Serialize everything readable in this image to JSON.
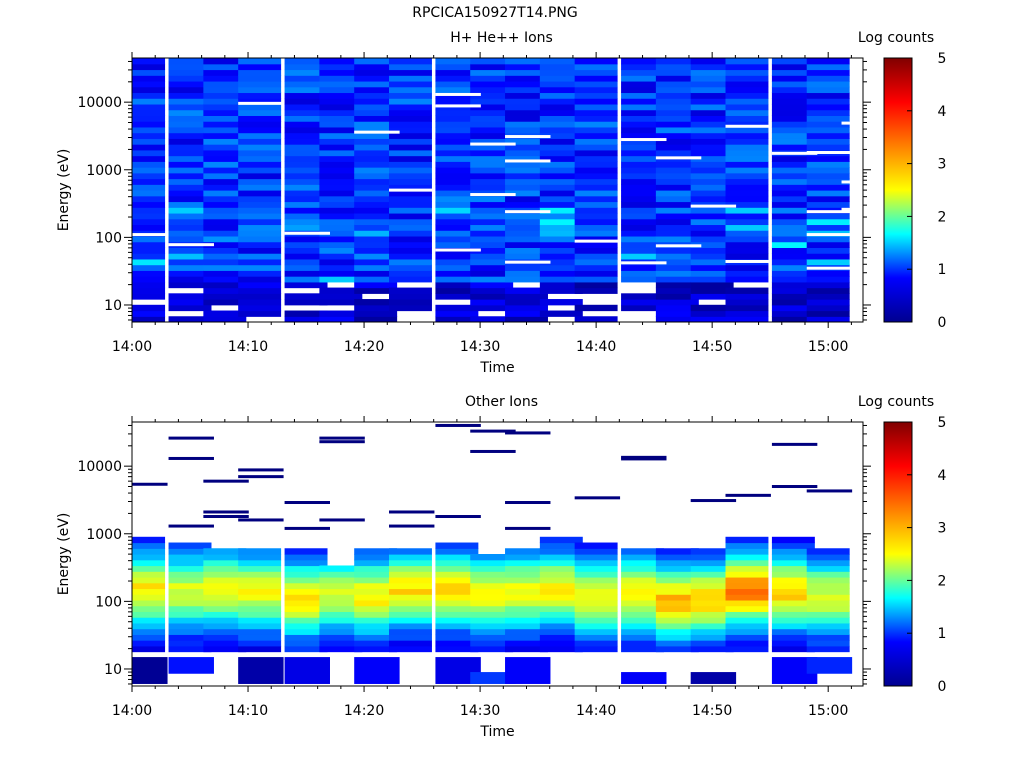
{
  "file_title": "RPCICA150927T14.PNG",
  "colorbar": {
    "ticks": [
      0,
      1,
      2,
      3,
      4,
      5
    ],
    "stops": [
      "#00008f",
      "#0000ff",
      "#00ffff",
      "#ffff00",
      "#ff8000",
      "#ff0000",
      "#800000"
    ]
  },
  "chart_data": [
    {
      "type": "heatmap",
      "title": "H+ He++ Ions",
      "xlabel": "Time",
      "ylabel": "Energy (eV)",
      "colorbar_label": "Log counts",
      "y_scale": "log",
      "ylim": [
        5.6,
        45000
      ],
      "yticks": [
        10,
        100,
        1000,
        10000
      ],
      "ytick_labels": [
        "10",
        "100",
        "1000",
        "10000"
      ],
      "xlim": [
        "14:00",
        "15:03"
      ],
      "xticks": [
        "14:00",
        "14:10",
        "14:20",
        "14:30",
        "14:40",
        "14:50",
        "15:00"
      ],
      "time_bins": [
        "14:01",
        "14:05",
        "14:08",
        "14:11",
        "14:15",
        "14:18",
        "14:21",
        "14:24",
        "14:28",
        "14:31",
        "14:34",
        "14:37",
        "14:40",
        "14:44",
        "14:47",
        "14:50",
        "14:53",
        "14:57",
        "15:00"
      ],
      "energy_range_eV": [
        5.6,
        45000
      ],
      "value_range": [
        0,
        1.8
      ],
      "typical_value": 0.7,
      "low_energy_cutoff_eV": [
        20,
        28,
        20,
        25,
        20,
        20,
        20,
        20,
        20,
        20,
        20,
        20,
        20,
        20,
        20,
        20,
        20,
        20,
        20
      ],
      "empty_bins_eV": [
        [
          8.5,
          11
        ],
        [
          23,
          28
        ],
        [
          8.5,
          11
        ],
        [
          8.5,
          11
        ],
        [
          8.5,
          11
        ],
        [
          8.5,
          11
        ],
        [
          8.5,
          11
        ],
        [
          8.5,
          11
        ],
        [
          6.5,
          8
        ]
      ],
      "gap_lines": [
        {
          "time": "14:01",
          "energy_eV": 110
        },
        {
          "time": "14:05",
          "energy_eV": 78
        },
        {
          "time": "14:11",
          "energy_eV": 9600
        },
        {
          "time": "14:15",
          "energy_eV": 115
        },
        {
          "time": "14:21",
          "energy_eV": 3600
        },
        {
          "time": "14:24",
          "energy_eV": 500
        },
        {
          "time": "14:28",
          "energy_eV": 13000
        },
        {
          "time": "14:28",
          "energy_eV": 8800
        },
        {
          "time": "14:28",
          "energy_eV": 65
        },
        {
          "time": "14:31",
          "energy_eV": 2400
        },
        {
          "time": "14:31",
          "energy_eV": 430
        },
        {
          "time": "14:34",
          "energy_eV": 3100
        },
        {
          "time": "14:34",
          "energy_eV": 1350
        },
        {
          "time": "14:34",
          "energy_eV": 240
        },
        {
          "time": "14:34",
          "energy_eV": 43
        },
        {
          "time": "14:40",
          "energy_eV": 88
        },
        {
          "time": "14:44",
          "energy_eV": 2800
        },
        {
          "time": "14:44",
          "energy_eV": 42
        },
        {
          "time": "14:47",
          "energy_eV": 1500
        },
        {
          "time": "14:47",
          "energy_eV": 75
        },
        {
          "time": "14:50",
          "energy_eV": 290
        },
        {
          "time": "14:53",
          "energy_eV": 4400
        },
        {
          "time": "14:53",
          "energy_eV": 44
        },
        {
          "time": "14:57",
          "energy_eV": 1750
        },
        {
          "time": "15:00",
          "energy_eV": 1800
        },
        {
          "time": "15:00",
          "energy_eV": 240
        },
        {
          "time": "15:00",
          "energy_eV": 110
        },
        {
          "time": "15:00",
          "energy_eV": 35
        },
        {
          "time": "15:03",
          "energy_eV": 4900
        },
        {
          "time": "15:03",
          "energy_eV": 660
        },
        {
          "time": "15:03",
          "energy_eV": 260
        }
      ]
    },
    {
      "type": "heatmap",
      "title": "Other Ions",
      "xlabel": "Time",
      "ylabel": "Energy (eV)",
      "colorbar_label": "Log counts",
      "y_scale": "log",
      "ylim": [
        5.6,
        45000
      ],
      "yticks": [
        10,
        100,
        1000,
        10000
      ],
      "ytick_labels": [
        "10",
        "100",
        "1000",
        "10000"
      ],
      "xlim": [
        "14:00",
        "15:03"
      ],
      "xticks": [
        "14:00",
        "14:10",
        "14:20",
        "14:30",
        "14:40",
        "14:50",
        "15:00"
      ],
      "time_bins": [
        "14:01",
        "14:05",
        "14:08",
        "14:11",
        "14:15",
        "14:18",
        "14:21",
        "14:24",
        "14:28",
        "14:31",
        "14:34",
        "14:37",
        "14:40",
        "14:44",
        "14:47",
        "14:50",
        "14:53",
        "14:57",
        "15:00"
      ],
      "band_top_eV": [
        820,
        700,
        620,
        600,
        600,
        360,
        600,
        600,
        800,
        500,
        640,
        820,
        700,
        560,
        560,
        560,
        880,
        820,
        620
      ],
      "peak_energy_eV": [
        150,
        140,
        150,
        140,
        110,
        130,
        120,
        150,
        150,
        130,
        140,
        150,
        120,
        130,
        100,
        110,
        150,
        140,
        120
      ],
      "peak_log_counts": [
        2.9,
        2.6,
        2.8,
        2.7,
        2.8,
        2.6,
        2.8,
        2.9,
        2.9,
        2.7,
        2.7,
        2.8,
        2.7,
        2.9,
        3.1,
        3.0,
        3.4,
        3.0,
        2.6
      ],
      "band_bottom_eV": [
        18,
        18,
        18,
        18,
        18,
        18,
        18,
        18,
        18,
        18,
        18,
        18,
        18,
        18,
        18,
        18,
        18,
        18,
        18
      ],
      "high_energy_traces": [
        {
          "time": "14:01",
          "energy_eV": [
            5400
          ]
        },
        {
          "time": "14:05",
          "energy_eV": [
            26000,
            13000,
            1300
          ]
        },
        {
          "time": "14:08",
          "energy_eV": [
            6000,
            2100,
            1800
          ]
        },
        {
          "time": "14:11",
          "energy_eV": [
            8800,
            7000,
            1600
          ]
        },
        {
          "time": "14:15",
          "energy_eV": [
            2900,
            1200
          ]
        },
        {
          "time": "14:18",
          "energy_eV": [
            26000,
            23000,
            1600
          ]
        },
        {
          "time": "14:24",
          "energy_eV": [
            2100,
            1300
          ]
        },
        {
          "time": "14:28",
          "energy_eV": [
            40000,
            1800
          ]
        },
        {
          "time": "14:31",
          "energy_eV": [
            33000,
            16500
          ]
        },
        {
          "time": "14:34",
          "energy_eV": [
            31000,
            2900,
            1200
          ]
        },
        {
          "time": "14:40",
          "energy_eV": [
            3400
          ]
        },
        {
          "time": "14:44",
          "energy_eV": [
            13500,
            12800
          ]
        },
        {
          "time": "14:50",
          "energy_eV": [
            3100
          ]
        },
        {
          "time": "14:53",
          "energy_eV": [
            3700
          ]
        },
        {
          "time": "14:57",
          "energy_eV": [
            21000,
            5000
          ]
        },
        {
          "time": "15:00",
          "energy_eV": [
            4300
          ]
        }
      ],
      "low_energy_blocks": [
        {
          "time": "14:01",
          "energy_eV": [
            6,
            15
          ],
          "log_counts": 0.1
        },
        {
          "time": "14:05",
          "energy_eV": [
            8.5,
            15
          ],
          "log_counts": 0.7
        },
        {
          "time": "14:11",
          "energy_eV": [
            6,
            15
          ],
          "log_counts": 0.2
        },
        {
          "time": "14:15",
          "energy_eV": [
            6,
            15
          ],
          "log_counts": 0.5
        },
        {
          "time": "14:21",
          "energy_eV": [
            6,
            15
          ],
          "log_counts": 0.6
        },
        {
          "time": "14:28",
          "energy_eV": [
            6,
            15
          ],
          "log_counts": 0.5
        },
        {
          "time": "14:31",
          "energy_eV": [
            6,
            9
          ],
          "log_counts": 0.9
        },
        {
          "time": "14:34",
          "energy_eV": [
            6,
            15
          ],
          "log_counts": 0.6
        },
        {
          "time": "14:44",
          "energy_eV": [
            6,
            9
          ],
          "log_counts": 0.6
        },
        {
          "time": "14:50",
          "energy_eV": [
            6,
            9
          ],
          "log_counts": 0.2
        },
        {
          "time": "14:57",
          "energy_eV": [
            6,
            15
          ],
          "log_counts": 0.6
        },
        {
          "time": "15:00",
          "energy_eV": [
            8.5,
            15
          ],
          "log_counts": 0.8
        }
      ]
    }
  ]
}
